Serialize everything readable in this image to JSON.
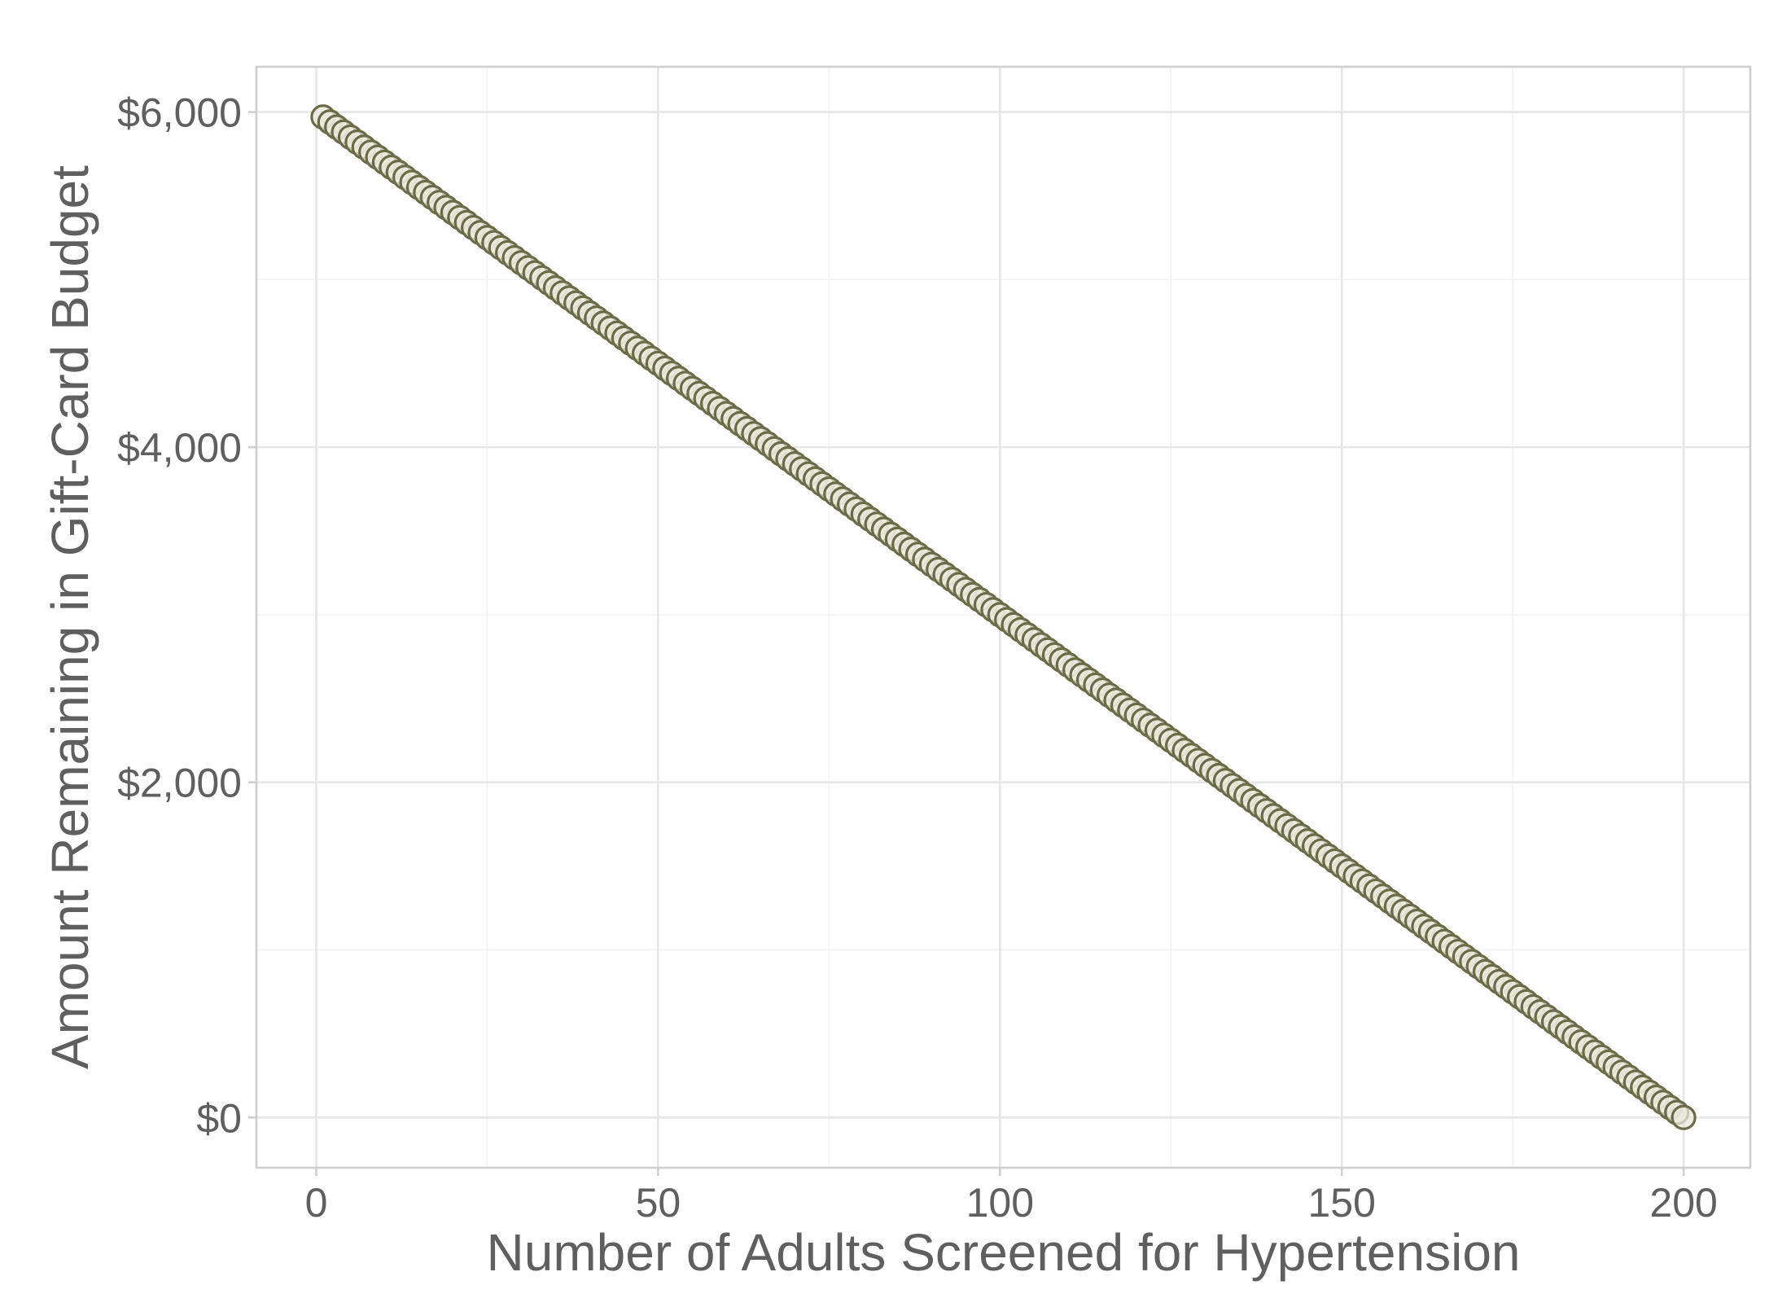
{
  "chart_data": {
    "type": "scatter",
    "title": "",
    "xlabel": "Number of Adults Screened for Hypertension",
    "ylabel": "Amount Remaining in Gift-Card Budget",
    "xlim": [
      -8.75,
      209.75
    ],
    "ylim": [
      -300,
      6270
    ],
    "x_ticks": [
      0,
      50,
      100,
      150,
      200
    ],
    "x_tick_labels": [
      "0",
      "50",
      "100",
      "150",
      "200"
    ],
    "x_minor_ticks": [
      25,
      75,
      125,
      175
    ],
    "y_ticks": [
      0,
      2000,
      4000,
      6000
    ],
    "y_tick_labels": [
      "$0",
      "$2,000",
      "$4,000",
      "$6,000"
    ],
    "y_minor_ticks": [
      1000,
      3000,
      5000
    ],
    "grid": true,
    "legend": "none",
    "series": [
      {
        "x_start": 1,
        "x_end": 200,
        "x_step": 1,
        "y_start": 5970,
        "y_step": -30,
        "point_fill": "#e8e8dc",
        "point_stroke": "#6b6b47"
      }
    ]
  }
}
